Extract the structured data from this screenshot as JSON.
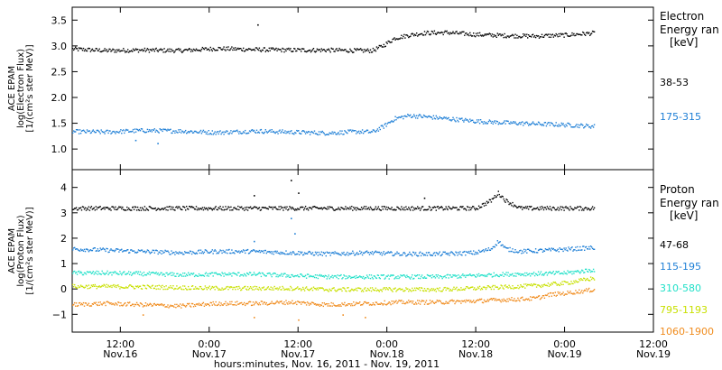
{
  "chart_data": {
    "type": "scatter",
    "xlabel": "hours:minutes, Nov. 16, 2011 - Nov. 19, 2011",
    "x_ticks": [
      {
        "hours": 12,
        "time": "12:00",
        "day": "Nov.16"
      },
      {
        "hours": 24,
        "time": "0:00",
        "day": "Nov.17"
      },
      {
        "hours": 36,
        "time": "12:00",
        "day": "Nov.17"
      },
      {
        "hours": 48,
        "time": "0:00",
        "day": "Nov.18"
      },
      {
        "hours": 60,
        "time": "12:00",
        "day": "Nov.18"
      },
      {
        "hours": 72,
        "time": "0:00",
        "day": "Nov.19"
      },
      {
        "hours": 84,
        "time": "12:00",
        "day": "Nov.19"
      }
    ],
    "xlim_hours_from_nov16": [
      5.5,
      84
    ],
    "panels": [
      {
        "name": "electron",
        "ylabel": [
          "ACE EPAM",
          "log(Electron Flux)",
          "[1/(cm²s ster MeV)]"
        ],
        "ylim": [
          0.6,
          3.75
        ],
        "yticks": [
          1.0,
          1.5,
          2.0,
          2.5,
          3.0,
          3.5
        ],
        "ytick_labels": [
          "1.0",
          "1.5",
          "2.0",
          "2.5",
          "3.0",
          "3.5"
        ],
        "legend_title": [
          "Electron",
          "Energy ran",
          "[keV]"
        ],
        "series": [
          {
            "name": "38-53",
            "color": "#000000",
            "x": [
              5.5,
              10,
              15,
              20,
              25,
              30,
              35,
              40,
              44,
              46,
              47.5,
              49,
              51,
              53,
              56,
              60,
              64,
              68,
              72,
              76
            ],
            "y": [
              2.95,
              2.92,
              2.93,
              2.92,
              2.96,
              2.94,
              2.93,
              2.93,
              2.92,
              2.92,
              3.02,
              3.16,
              3.22,
              3.26,
              3.27,
              3.23,
              3.21,
              3.2,
              3.22,
              3.26
            ],
            "outliers": [
              [
                30.5,
                3.42
              ]
            ]
          },
          {
            "name": "175-315",
            "color": "#1e7fd6",
            "x": [
              5.5,
              10,
              15,
              20,
              25,
              30,
              35,
              40,
              44,
              46,
              47.5,
              49,
              51,
              53,
              56,
              60,
              64,
              68,
              72,
              76
            ],
            "y": [
              1.35,
              1.34,
              1.37,
              1.36,
              1.33,
              1.36,
              1.34,
              1.32,
              1.35,
              1.34,
              1.45,
              1.6,
              1.66,
              1.64,
              1.6,
              1.55,
              1.52,
              1.5,
              1.48,
              1.45
            ],
            "outliers": [
              [
                17,
                1.12
              ],
              [
                14,
                1.18
              ]
            ]
          }
        ]
      },
      {
        "name": "proton",
        "ylabel": [
          "ACE EPAM",
          "log(Proton Flux)",
          "[1/(cm²s ster MeV)]"
        ],
        "ylim": [
          -1.7,
          4.7
        ],
        "yticks": [
          -1,
          0,
          1,
          2,
          3,
          4
        ],
        "ytick_labels": [
          "−1",
          "0",
          "1",
          "2",
          "3",
          "4"
        ],
        "legend_title": [
          "Proton",
          "Energy ran",
          "[keV]"
        ],
        "series": [
          {
            "name": "47-68",
            "color": "#000000",
            "x": [
              5.5,
              10,
              15,
              20,
              25,
              30,
              35,
              40,
              45,
              50,
              55,
              60,
              62,
              63,
              64,
              66,
              70,
              76
            ],
            "y": [
              3.2,
              3.2,
              3.2,
              3.2,
              3.2,
              3.2,
              3.2,
              3.2,
              3.2,
              3.2,
              3.2,
              3.2,
              3.5,
              3.8,
              3.5,
              3.2,
              3.2,
              3.2
            ],
            "outliers": [
              [
                30,
                3.7
              ],
              [
                35,
                4.3
              ],
              [
                36,
                3.8
              ],
              [
                53,
                3.6
              ]
            ]
          },
          {
            "name": "115-195",
            "color": "#1e7fd6",
            "x": [
              5.5,
              10,
              15,
              20,
              25,
              30,
              35,
              40,
              45,
              50,
              55,
              60,
              62,
              63,
              64,
              66,
              70,
              76
            ],
            "y": [
              1.6,
              1.55,
              1.5,
              1.45,
              1.5,
              1.5,
              1.45,
              1.4,
              1.45,
              1.4,
              1.4,
              1.45,
              1.6,
              1.9,
              1.6,
              1.5,
              1.55,
              1.65
            ],
            "outliers": [
              [
                30,
                1.9
              ],
              [
                35,
                2.8
              ],
              [
                35.5,
                2.2
              ]
            ]
          },
          {
            "name": "310-580",
            "color": "#20e0c8",
            "x": [
              5.5,
              10,
              15,
              20,
              25,
              30,
              35,
              40,
              45,
              50,
              55,
              60,
              64,
              68,
              72,
              76
            ],
            "y": [
              0.65,
              0.65,
              0.62,
              0.58,
              0.6,
              0.6,
              0.55,
              0.5,
              0.5,
              0.5,
              0.5,
              0.55,
              0.6,
              0.62,
              0.65,
              0.78
            ],
            "outliers": []
          },
          {
            "name": "795-1193",
            "color": "#c8e000",
            "x": [
              5.5,
              10,
              15,
              20,
              25,
              30,
              35,
              40,
              45,
              50,
              55,
              60,
              64,
              68,
              72,
              76
            ],
            "y": [
              0.12,
              0.12,
              0.1,
              0.08,
              0.05,
              0.05,
              0.05,
              0.0,
              0.0,
              0.0,
              0.0,
              0.05,
              0.1,
              0.15,
              0.25,
              0.45
            ],
            "outliers": []
          },
          {
            "name": "1060-1900",
            "color": "#f08c1e",
            "x": [
              5.5,
              10,
              15,
              20,
              25,
              30,
              35,
              40,
              45,
              50,
              55,
              60,
              64,
              68,
              70,
              72,
              76
            ],
            "y": [
              -0.6,
              -0.55,
              -0.6,
              -0.65,
              -0.55,
              -0.55,
              -0.5,
              -0.6,
              -0.55,
              -0.5,
              -0.5,
              -0.45,
              -0.4,
              -0.35,
              -0.2,
              -0.15,
              0.0
            ],
            "outliers": [
              [
                15,
                -1.0
              ],
              [
                30,
                -1.1
              ],
              [
                36,
                -1.2
              ],
              [
                42,
                -1.0
              ],
              [
                45,
                -1.1
              ]
            ]
          }
        ]
      }
    ]
  }
}
